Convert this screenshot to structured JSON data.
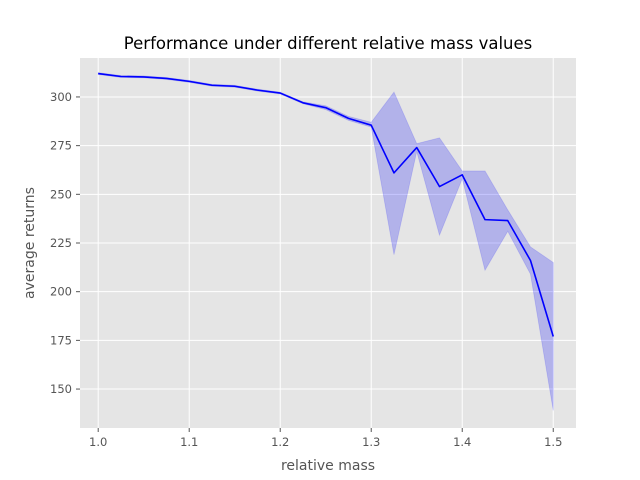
{
  "chart_data": {
    "type": "line",
    "title": "Performance under different relative mass values",
    "xlabel": "relative mass",
    "ylabel": "average returns",
    "xlim": [
      0.98,
      1.525
    ],
    "ylim": [
      130,
      320
    ],
    "xticks": [
      "1.0",
      "1.1",
      "1.2",
      "1.3",
      "1.4",
      "1.5"
    ],
    "xtick_values": [
      1.0,
      1.1,
      1.2,
      1.3,
      1.4,
      1.5
    ],
    "yticks": [
      "150",
      "175",
      "200",
      "225",
      "250",
      "275",
      "300"
    ],
    "ytick_values": [
      150,
      175,
      200,
      225,
      250,
      275,
      300
    ],
    "grid": true,
    "background_color": "#e5e5e5",
    "line_color": "#0000ff",
    "band_color": "#0000ff",
    "series": [
      {
        "x": [
          1.0,
          1.025,
          1.05,
          1.075,
          1.1,
          1.125,
          1.15,
          1.175,
          1.2,
          1.225,
          1.25,
          1.275,
          1.3,
          1.325,
          1.35,
          1.375,
          1.4,
          1.425,
          1.45,
          1.475,
          1.5
        ],
        "y": [
          312,
          310.5,
          310.3,
          309.5,
          308,
          306,
          305.5,
          303.5,
          302,
          297,
          294.5,
          289,
          285.5,
          261,
          274,
          254,
          260,
          237,
          236.5,
          216,
          177
        ],
        "upper": [
          312.5,
          311,
          310.8,
          310,
          308.5,
          306.5,
          306,
          304,
          302.5,
          297.5,
          295.5,
          290,
          287,
          302.5,
          276,
          279,
          262,
          262,
          242,
          223,
          215
        ],
        "lower": [
          311.5,
          310,
          309.8,
          309,
          307.5,
          305.5,
          305,
          303,
          301.5,
          296.5,
          293.5,
          288,
          284.5,
          219,
          272,
          229,
          258,
          211,
          231,
          209,
          139
        ]
      }
    ]
  }
}
